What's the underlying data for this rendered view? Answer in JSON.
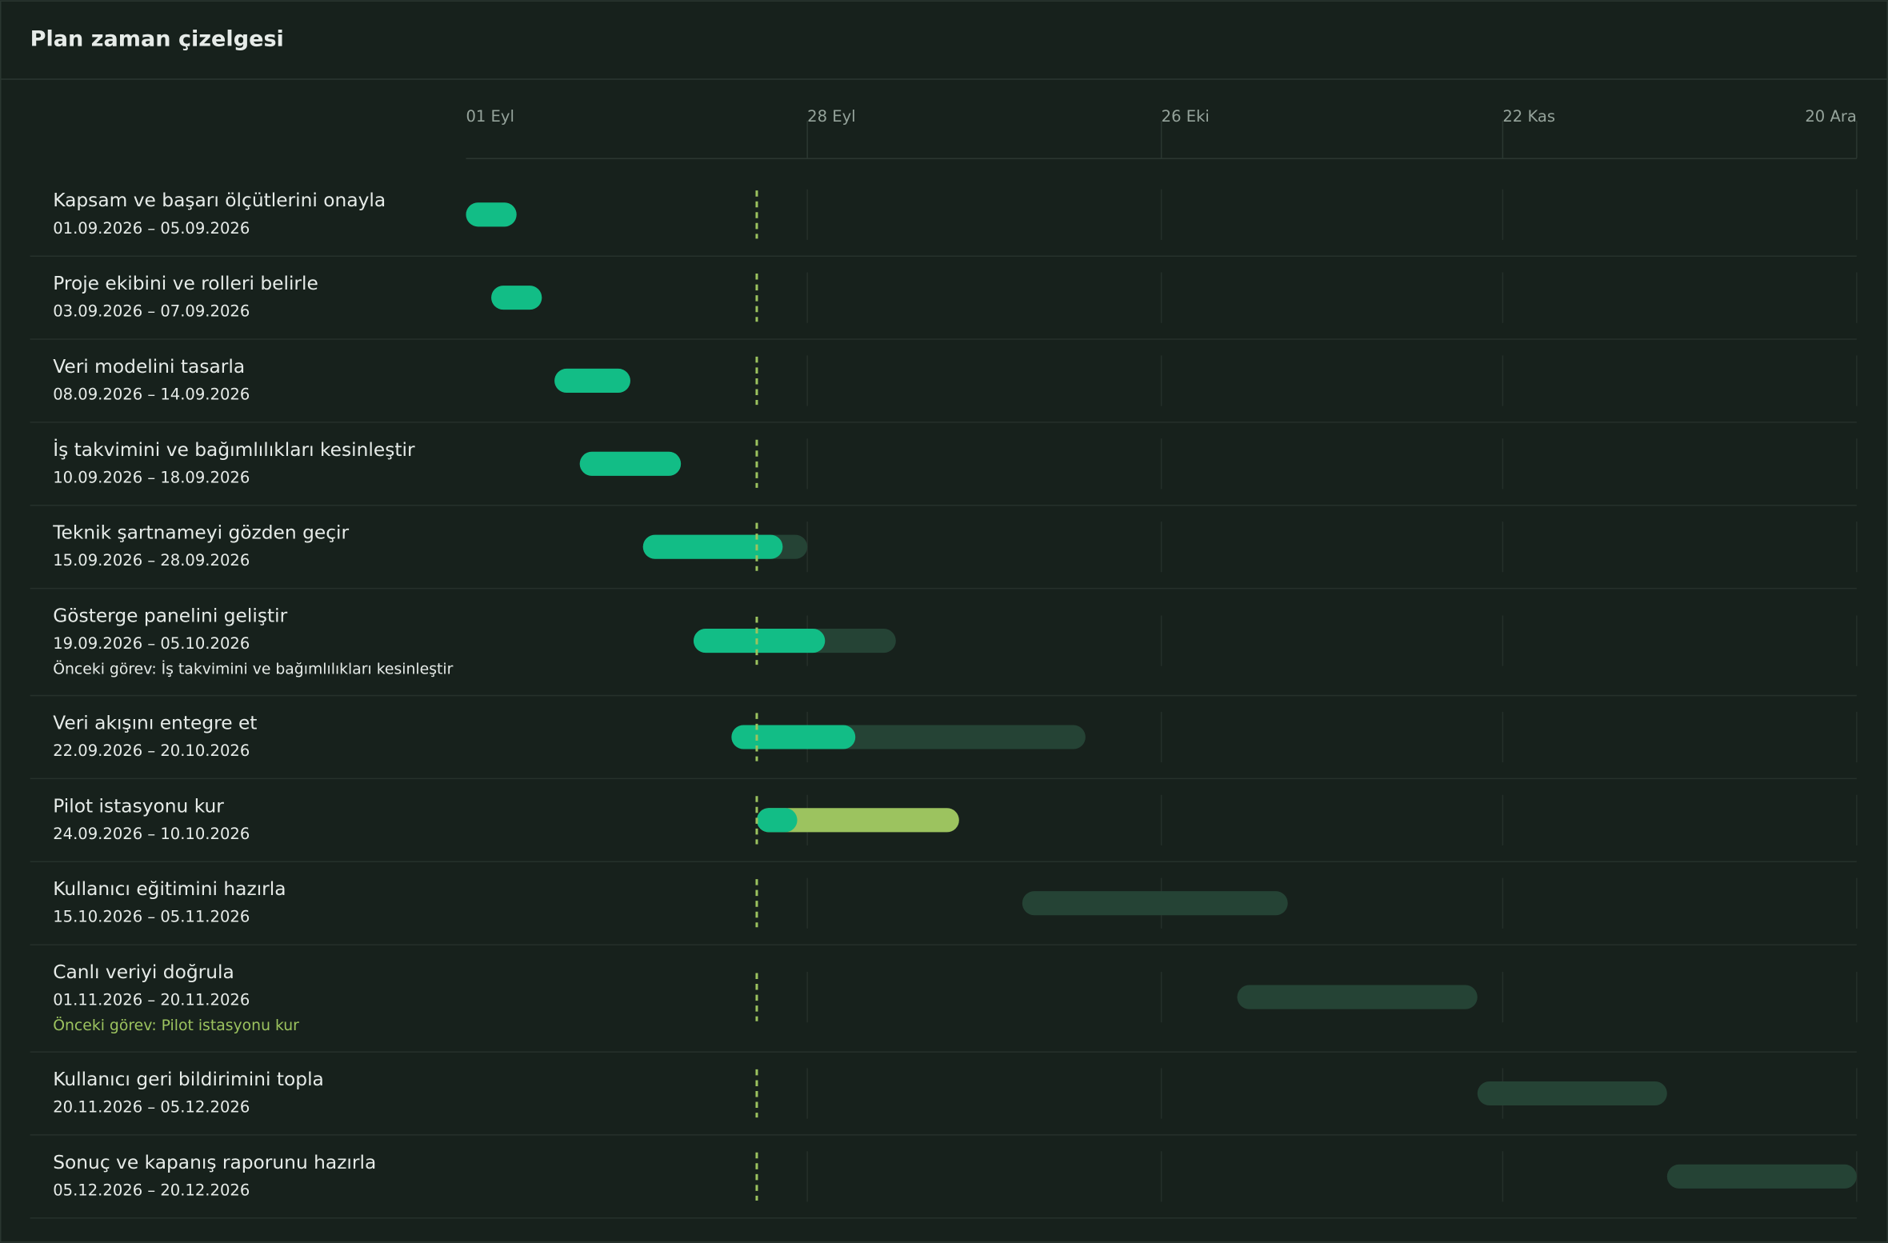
{
  "title": "Plan zaman çizelgesi",
  "axis": {
    "range": [
      "2026-09-01",
      "2026-12-20"
    ],
    "today": "2026-09-24",
    "ticks": [
      {
        "value": "2026-09-01",
        "label": "01 Eyl"
      },
      {
        "value": "2026-09-28",
        "label": "28 Eyl"
      },
      {
        "value": "2026-10-26",
        "label": "26 Eki"
      },
      {
        "value": "2026-11-22",
        "label": "22 Kas"
      },
      {
        "value": "2026-12-20",
        "label": "20 Ara"
      }
    ]
  },
  "colors": {
    "progress": "#12bd86",
    "track": "#254335",
    "today": "#9cc35f"
  },
  "tasks": [
    {
      "name": "Kapsam ve başarı ölçütlerini onayla",
      "dates": "01.09.2026 – 05.09.2026",
      "progress": 100
    },
    {
      "name": "Proje ekibini ve rolleri belirle",
      "dates": "03.09.2026 – 07.09.2026",
      "progress": 100
    },
    {
      "name": "Veri modelini tasarla",
      "dates": "08.09.2026 – 14.09.2026",
      "progress": 100
    },
    {
      "name": "İş takvimini ve bağımlılıkları kesinleştir",
      "dates": "10.09.2026 – 18.09.2026",
      "progress": 100
    },
    {
      "name": "Teknik şartnameyi gözden geçir",
      "dates": "15.09.2026 – 28.09.2026",
      "progress": 85
    },
    {
      "name": "Gösterge panelini geliştir",
      "dates": "19.09.2026 – 05.10.2026",
      "progress": 65,
      "predecessor": "Önceki görev: İş takvimini ve bağımlılıkları kesinleştir"
    },
    {
      "name": "Veri akışını entegre et",
      "dates": "22.09.2026 – 20.10.2026",
      "progress": 35
    },
    {
      "name": "Pilot istasyonu kur",
      "dates": "24.09.2026 – 10.10.2026",
      "progress": 20,
      "track_color": "#9cc35f"
    },
    {
      "name": "Kullanıcı eğitimini hazırla",
      "dates": "15.10.2026 – 05.11.2026",
      "progress": 0
    },
    {
      "name": "Canlı veriyi doğrula",
      "dates": "01.11.2026 – 20.11.2026",
      "progress": 0,
      "predecessor": "Önceki görev: Pilot istasyonu kur",
      "predecessor_color": "#9cc35f"
    },
    {
      "name": "Kullanıcı geri bildirimini topla",
      "dates": "20.11.2026 – 05.12.2026",
      "progress": 0
    },
    {
      "name": "Sonuç ve kapanış raporunu hazırla",
      "dates": "05.12.2026 – 20.12.2026",
      "progress": 0
    }
  ]
}
